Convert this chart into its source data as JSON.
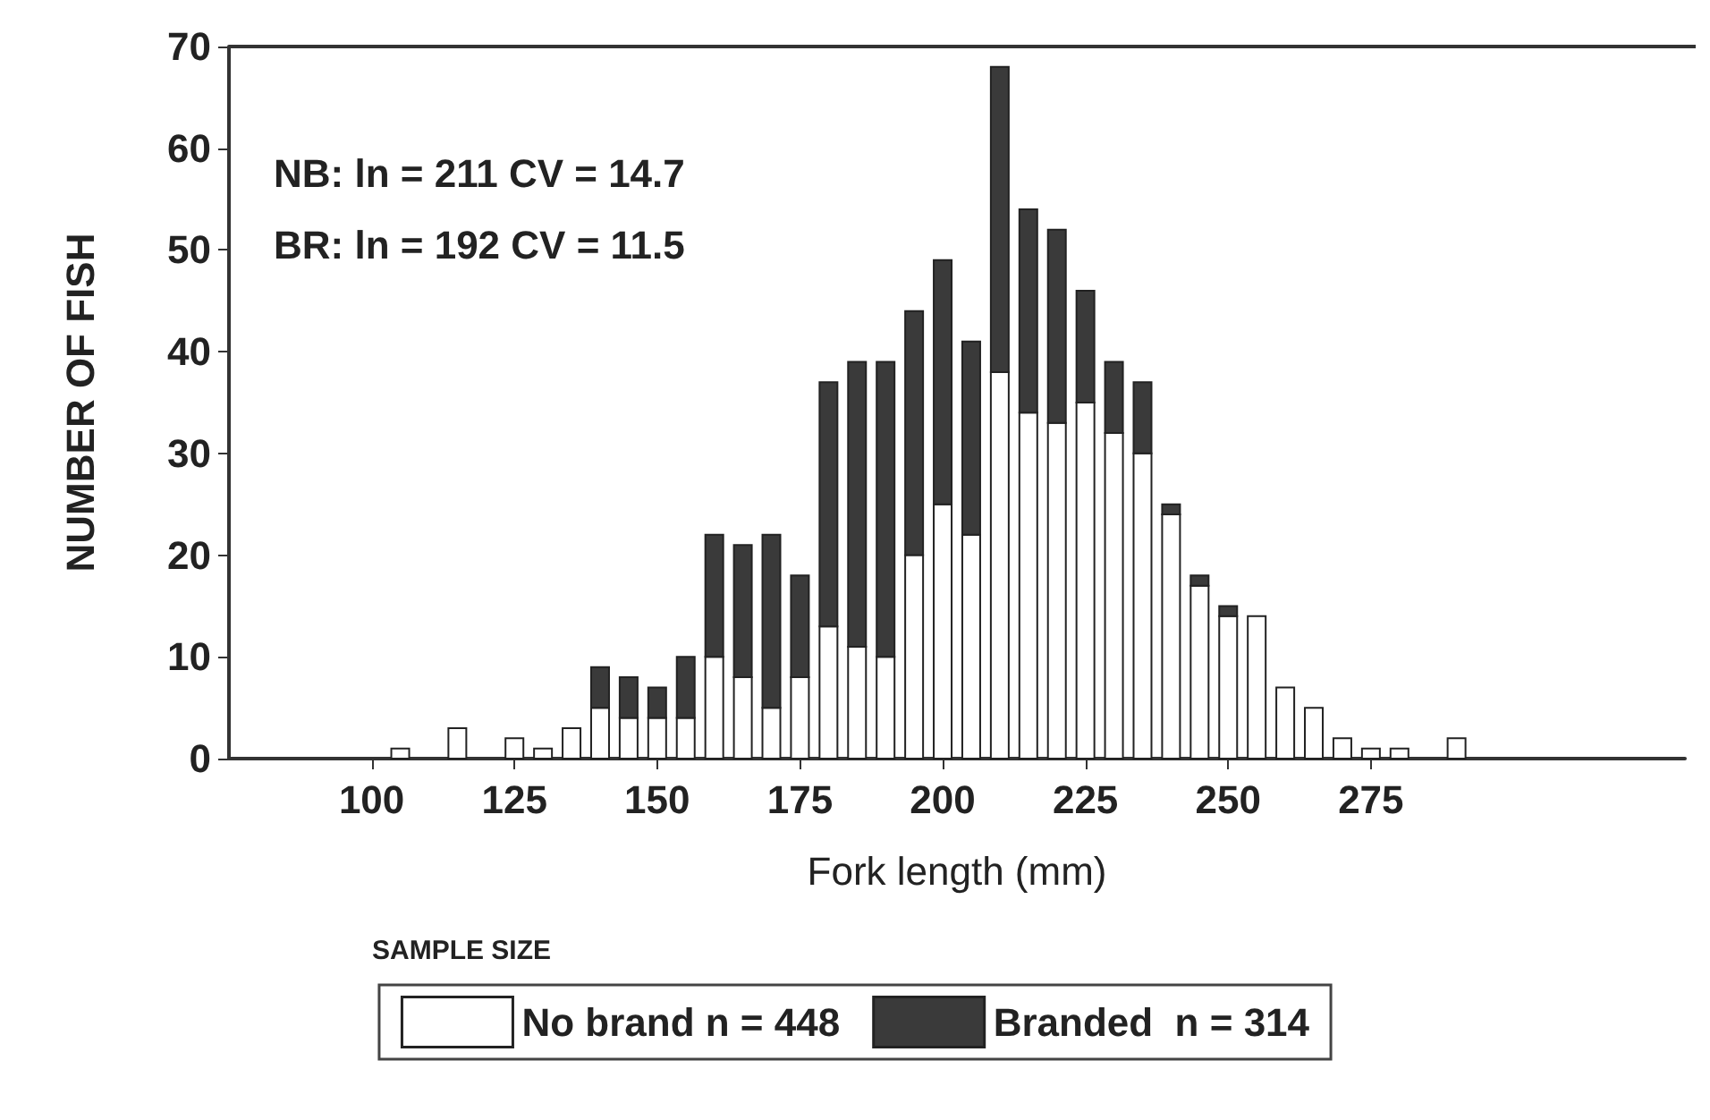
{
  "chart_data": {
    "type": "bar",
    "stacked": true,
    "xlabel": "Fork length (mm)",
    "ylabel": "NUMBER OF FISH",
    "legend_title": "SAMPLE SIZE",
    "legend": "bottom",
    "grid": false,
    "annotations": [
      "NB: ln = 211 CV = 14.7",
      "BR: ln = 192 CV = 11.5"
    ],
    "x": [
      105,
      110,
      115,
      120,
      125,
      130,
      135,
      140,
      145,
      150,
      155,
      160,
      165,
      170,
      175,
      180,
      185,
      190,
      195,
      200,
      205,
      210,
      215,
      220,
      225,
      230,
      235,
      240,
      245,
      250,
      255,
      260,
      265,
      270,
      275,
      280,
      285,
      290
    ],
    "series": [
      {
        "name": "No brand n = 448",
        "color": "#ffffff",
        "values": [
          1,
          null,
          3,
          null,
          2,
          1,
          3,
          5,
          4,
          4,
          4,
          10,
          8,
          5,
          8,
          13,
          11,
          10,
          20,
          25,
          22,
          38,
          34,
          33,
          35,
          32,
          30,
          24,
          17,
          14,
          14,
          7,
          5,
          2,
          1,
          1,
          null,
          2
        ]
      },
      {
        "name": "Branded  n = 314",
        "color": "#3a3a3a",
        "values": [
          null,
          null,
          null,
          null,
          null,
          null,
          null,
          4,
          4,
          3,
          6,
          12,
          13,
          17,
          10,
          24,
          28,
          29,
          24,
          24,
          19,
          30,
          20,
          19,
          11,
          7,
          7,
          1,
          1,
          1,
          null,
          null,
          null,
          null,
          null,
          null,
          null,
          null
        ]
      }
    ],
    "xlim": [
      75,
      330
    ],
    "xticks": [
      100,
      125,
      150,
      175,
      200,
      225,
      250,
      275
    ],
    "ylim": [
      0,
      70
    ],
    "yticks": [
      0,
      10,
      20,
      30,
      40,
      50,
      60,
      70
    ]
  }
}
